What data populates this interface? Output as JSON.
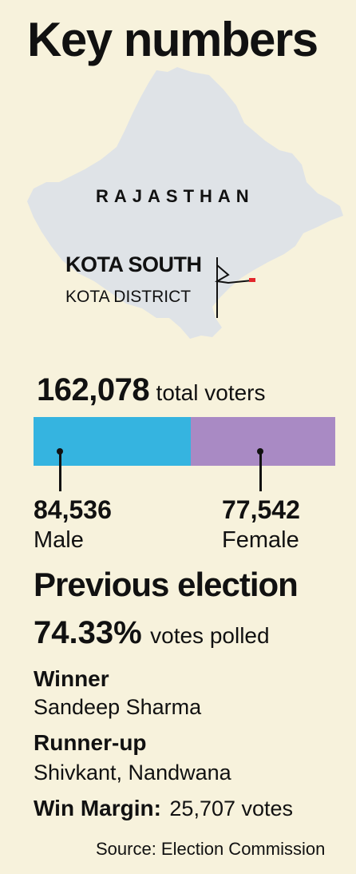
{
  "title": "Key numbers",
  "map": {
    "state": "RAJASTHAN",
    "constituency": "KOTA SOUTH",
    "district": "KOTA DISTRICT",
    "state_color": "#dfe3e7",
    "marker_color": "#e2272b"
  },
  "voters": {
    "total": "162,078",
    "total_label": "total voters",
    "male": "84,536",
    "male_label": "Male",
    "female": "77,542",
    "female_label": "Female",
    "male_color": "#35b4e0",
    "female_color": "#a98ac4"
  },
  "previous": {
    "heading": "Previous election",
    "polled_pct": "74.33%",
    "polled_label": "votes polled",
    "winner_label": "Winner",
    "winner": "Sandeep Sharma",
    "runner_label": "Runner-up",
    "runner": "Shivkant, Nandwana",
    "margin_label": "Win Margin:",
    "margin": "25,707 votes"
  },
  "source": "Source: Election Commission"
}
